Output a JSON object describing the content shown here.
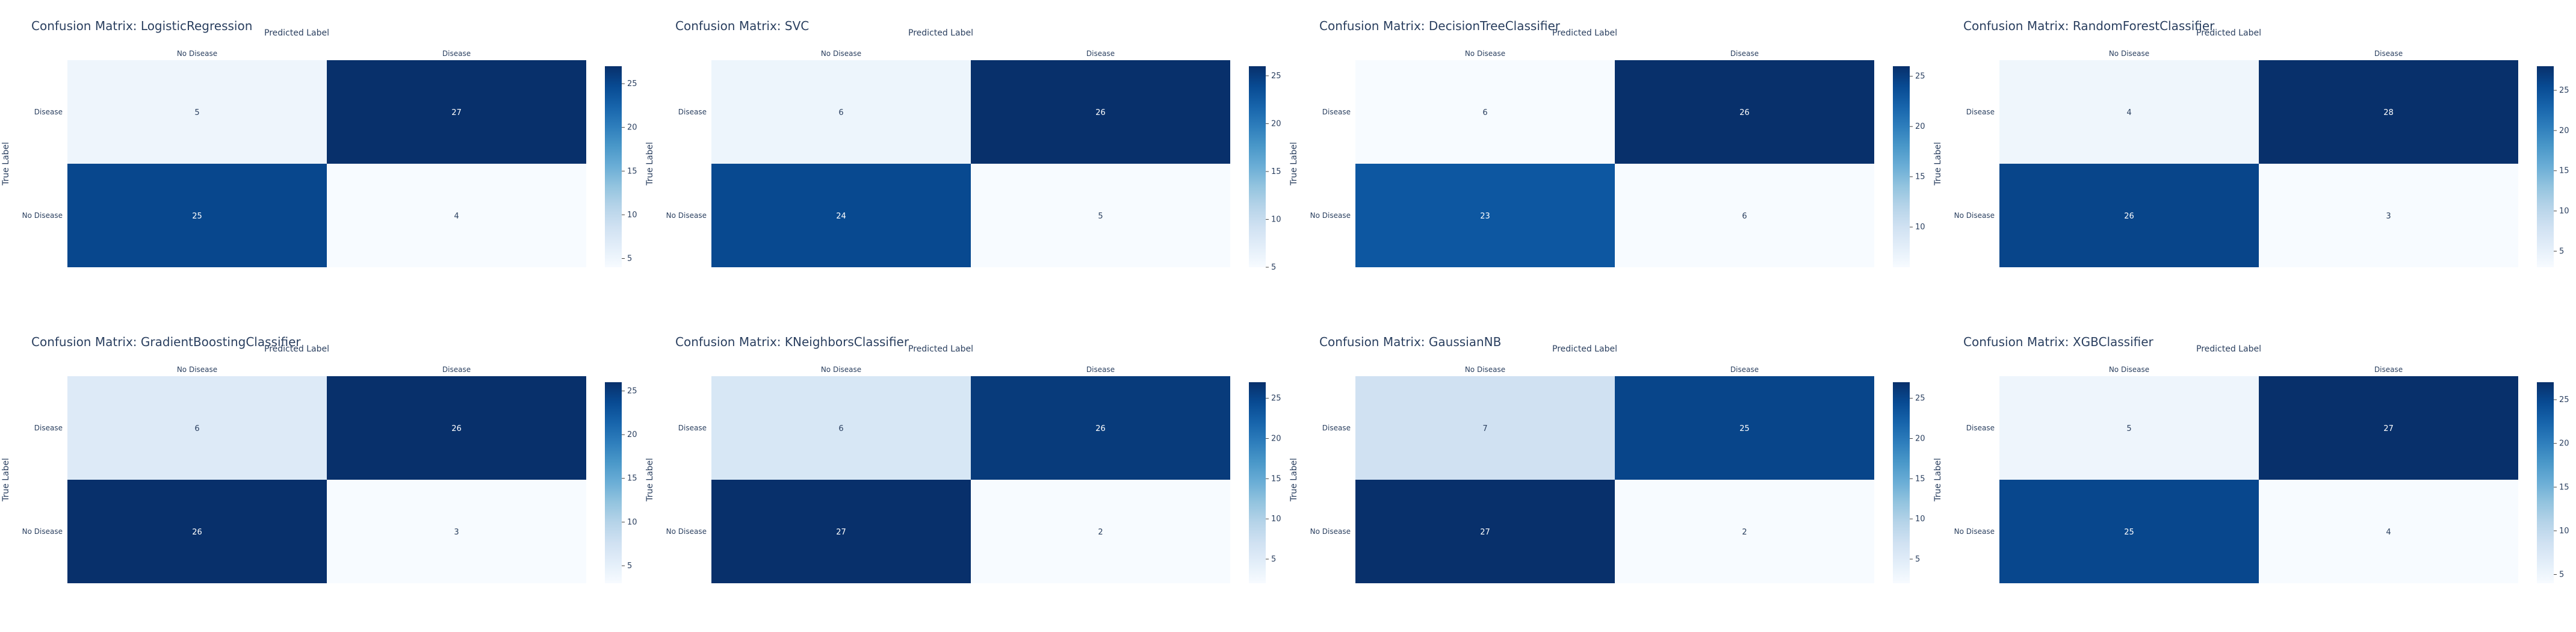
{
  "chart_data": [
    {
      "type": "heatmap",
      "title": "Confusion Matrix: LogisticRegression",
      "xlabel": "Predicted Label",
      "ylabel": "True Label",
      "x_categories": [
        "No Disease",
        "Disease"
      ],
      "y_categories": [
        "Disease",
        "No Disease"
      ],
      "values": [
        [
          5,
          27
        ],
        [
          25,
          4
        ]
      ],
      "colorscale": "Blues",
      "colorbar": {
        "range": [
          4,
          27
        ],
        "ticks": [
          5,
          10,
          15,
          20,
          25
        ]
      }
    },
    {
      "type": "heatmap",
      "title": "Confusion Matrix: SVC",
      "xlabel": "Predicted Label",
      "ylabel": "True Label",
      "x_categories": [
        "No Disease",
        "Disease"
      ],
      "y_categories": [
        "Disease",
        "No Disease"
      ],
      "values": [
        [
          6,
          26
        ],
        [
          24,
          5
        ]
      ],
      "colorscale": "Blues",
      "colorbar": {
        "range": [
          5,
          26
        ],
        "ticks": [
          5,
          10,
          15,
          20,
          25
        ]
      }
    },
    {
      "type": "heatmap",
      "title": "Confusion Matrix: DecisionTreeClassifier",
      "xlabel": "Predicted Label",
      "ylabel": "True Label",
      "x_categories": [
        "No Disease",
        "Disease"
      ],
      "y_categories": [
        "Disease",
        "No Disease"
      ],
      "values": [
        [
          6,
          26
        ],
        [
          23,
          6
        ]
      ],
      "colorscale": "Blues",
      "colorbar": {
        "range": [
          6,
          26
        ],
        "ticks": [
          10,
          15,
          20,
          25
        ]
      }
    },
    {
      "type": "heatmap",
      "title": "Confusion Matrix: RandomForestClassifier",
      "xlabel": "Predicted Label",
      "ylabel": "True Label",
      "x_categories": [
        "No Disease",
        "Disease"
      ],
      "y_categories": [
        "Disease",
        "No Disease"
      ],
      "values": [
        [
          4,
          28
        ],
        [
          26,
          3
        ]
      ],
      "colorscale": "Blues",
      "colorbar": {
        "range": [
          3,
          28
        ],
        "ticks": [
          5,
          10,
          15,
          20,
          25
        ]
      }
    },
    {
      "type": "heatmap",
      "title": "Confusion Matrix: GradientBoostingClassifier",
      "xlabel": "Predicted Label",
      "ylabel": "True Label",
      "x_categories": [
        "No Disease",
        "Disease"
      ],
      "y_categories": [
        "Disease",
        "No Disease"
      ],
      "values": [
        [
          6,
          26
        ],
        [
          26,
          3
        ]
      ],
      "colorscale": "Blues",
      "colorbar": {
        "range": [
          3,
          26
        ],
        "ticks": [
          5,
          10,
          15,
          20,
          25
        ]
      }
    },
    {
      "type": "heatmap",
      "title": "Confusion Matrix: KNeighborsClassifier",
      "xlabel": "Predicted Label",
      "ylabel": "True Label",
      "x_categories": [
        "No Disease",
        "Disease"
      ],
      "y_categories": [
        "Disease",
        "No Disease"
      ],
      "values": [
        [
          6,
          26
        ],
        [
          27,
          2
        ]
      ],
      "colorscale": "Blues",
      "colorbar": {
        "range": [
          2,
          27
        ],
        "ticks": [
          5,
          10,
          15,
          20,
          25
        ]
      }
    },
    {
      "type": "heatmap",
      "title": "Confusion Matrix: GaussianNB",
      "xlabel": "Predicted Label",
      "ylabel": "True Label",
      "x_categories": [
        "No Disease",
        "Disease"
      ],
      "y_categories": [
        "Disease",
        "No Disease"
      ],
      "values": [
        [
          7,
          25
        ],
        [
          27,
          2
        ]
      ],
      "colorscale": "Blues",
      "colorbar": {
        "range": [
          2,
          27
        ],
        "ticks": [
          5,
          10,
          15,
          20,
          25
        ]
      }
    },
    {
      "type": "heatmap",
      "title": "Confusion Matrix: XGBClassifier",
      "xlabel": "Predicted Label",
      "ylabel": "True Label",
      "x_categories": [
        "No Disease",
        "Disease"
      ],
      "y_categories": [
        "Disease",
        "No Disease"
      ],
      "values": [
        [
          5,
          27
        ],
        [
          25,
          4
        ]
      ],
      "colorscale": "Blues",
      "colorbar": {
        "range": [
          4,
          27
        ],
        "ticks": [
          5,
          10,
          15,
          20,
          25
        ]
      }
    }
  ],
  "colors": {
    "text_dark": "#2a3f5f",
    "blues_scale": [
      "#f7fbff",
      "#deebf7",
      "#c6dbef",
      "#9ecae1",
      "#6baed6",
      "#4292c6",
      "#2171b5",
      "#08519c",
      "#08306b"
    ]
  }
}
